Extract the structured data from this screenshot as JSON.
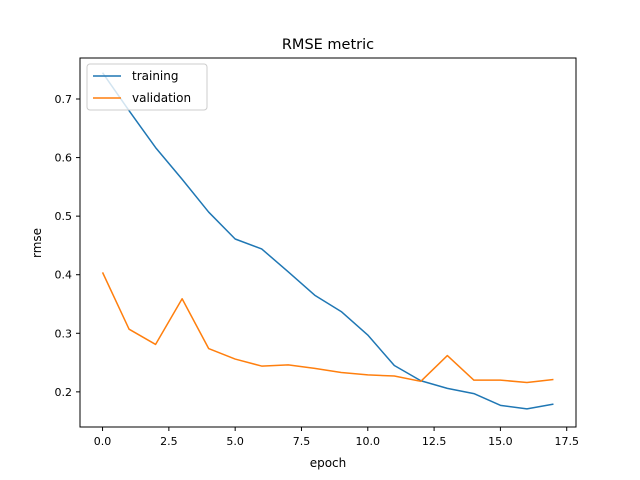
{
  "chart_data": {
    "type": "line",
    "title": "RMSE metric",
    "xlabel": "epoch",
    "ylabel": "rmse",
    "xlim": [
      -0.85,
      17.85
    ],
    "ylim": [
      0.14,
      0.77
    ],
    "xticks": [
      0.0,
      2.5,
      5.0,
      7.5,
      10.0,
      12.5,
      15.0,
      17.5
    ],
    "xtick_labels": [
      "0.0",
      "2.5",
      "5.0",
      "7.5",
      "10.0",
      "12.5",
      "15.0",
      "17.5"
    ],
    "yticks": [
      0.2,
      0.3,
      0.4,
      0.5,
      0.6,
      0.7
    ],
    "ytick_labels": [
      "0.2",
      "0.3",
      "0.4",
      "0.5",
      "0.6",
      "0.7"
    ],
    "grid": false,
    "legend_position": "upper-left",
    "x": [
      0,
      1,
      2,
      3,
      4,
      5,
      6,
      7,
      8,
      9,
      10,
      11,
      12,
      13,
      14,
      15,
      16,
      17
    ],
    "series": [
      {
        "name": "training",
        "color": "#1f77b4",
        "values": [
          0.745,
          0.68,
          0.617,
          0.563,
          0.507,
          0.461,
          0.444,
          0.405,
          0.365,
          0.337,
          0.297,
          0.245,
          0.219,
          0.206,
          0.197,
          0.177,
          0.171,
          0.179
        ]
      },
      {
        "name": "validation",
        "color": "#ff7f0e",
        "values": [
          0.404,
          0.307,
          0.281,
          0.359,
          0.274,
          0.256,
          0.244,
          0.246,
          0.24,
          0.233,
          0.229,
          0.227,
          0.218,
          0.262,
          0.22,
          0.22,
          0.216,
          0.221
        ]
      }
    ]
  }
}
